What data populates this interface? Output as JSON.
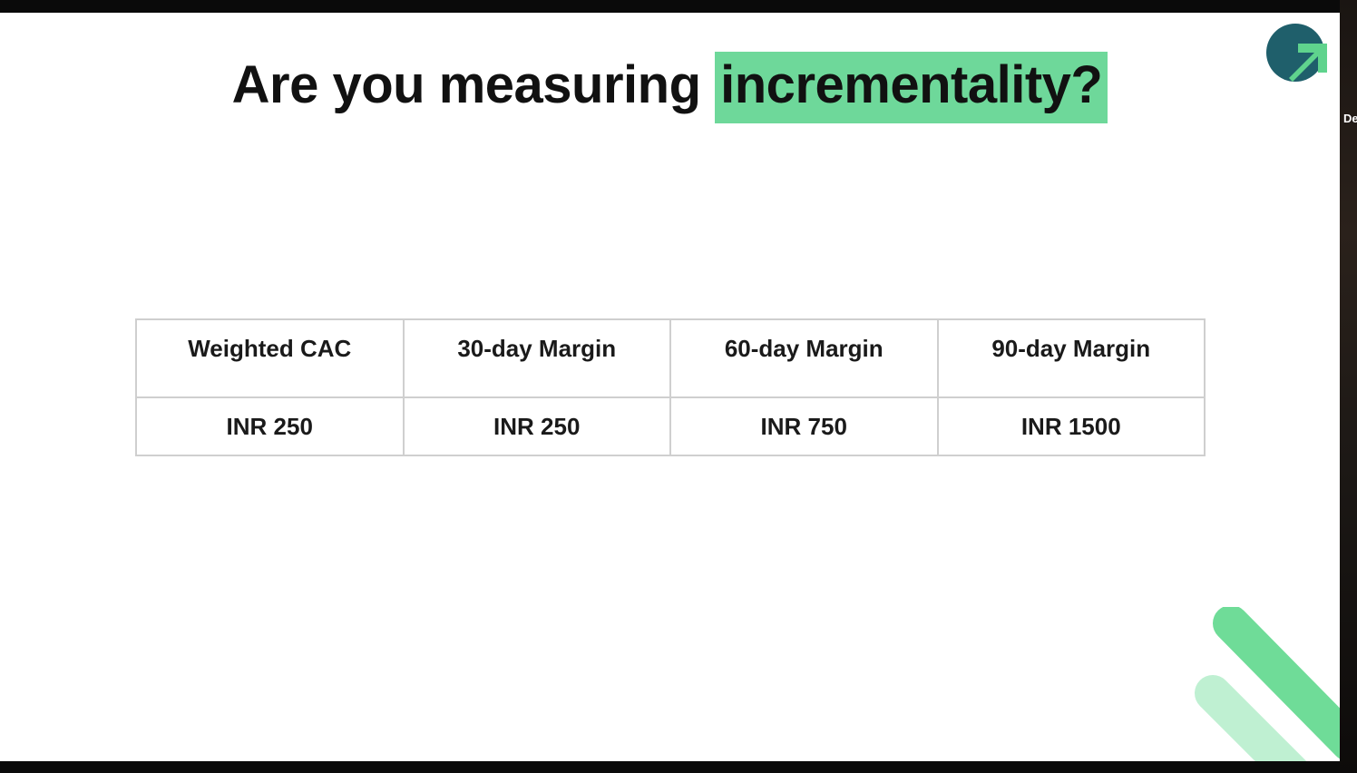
{
  "slide": {
    "title_plain": "Are you measuring ",
    "title_highlight": "incrementality?",
    "highlight_color": "#6ed89a"
  },
  "side_panel": {
    "label": "De"
  },
  "table": {
    "headers": [
      "Weighted CAC",
      "30-day Margin",
      "60-day Margin",
      "90-day Margin"
    ],
    "values": [
      "INR 250",
      "INR 250",
      "INR 750",
      "INR 1500"
    ]
  },
  "icons": {
    "logo": "arrow-circle-logo-icon",
    "decoration": "green-diagonal-stripes"
  },
  "colors": {
    "logo_dark": "#1f5f6b",
    "logo_green": "#5fd38d",
    "stripe_green": "#6fdc98",
    "stripe_light": "#bff0d2"
  }
}
